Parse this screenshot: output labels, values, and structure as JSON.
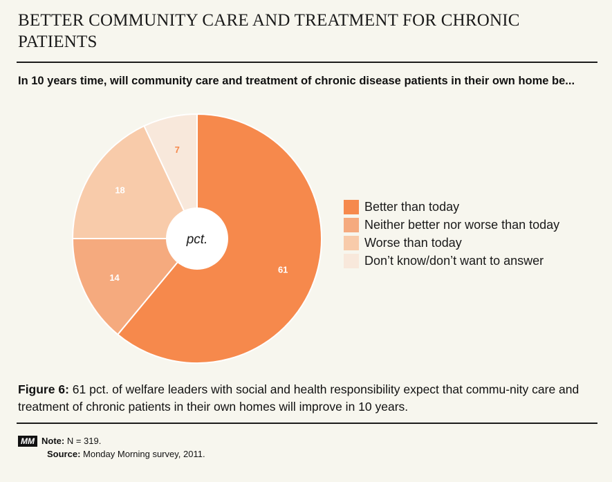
{
  "title": "BETTER COMMUNITY CARE AND TREATMENT FOR CHRONIC PATIENTS",
  "question": "In 10 years time, will community care and treatment of chronic disease patients in their own home be...",
  "center_label": "pct.",
  "chart_data": {
    "type": "pie",
    "style": "donut",
    "unit": "pct.",
    "categories": [
      "Better than today",
      "Neither better nor worse than today",
      "Worse than today",
      "Don’t know/don’t want to answer"
    ],
    "values": [
      61,
      14,
      18,
      7
    ],
    "colors": [
      "#f6894c",
      "#f5aa7e",
      "#f8cbaa",
      "#f8e8db"
    ],
    "label_colors": [
      "#ffffff",
      "#ffffff",
      "#ffffff",
      "#f6894c"
    ],
    "legend_placement": "right"
  },
  "caption": {
    "figure_label": "Figure 6:",
    "text": " 61 pct. of welfare leaders with social and health responsibility expect that commu-nity care and treatment of chronic patients in their own homes will improve in 10 years."
  },
  "notes": {
    "badge": "MM",
    "note_label": "Note:",
    "note_text": " N = 319.",
    "source_label": "Source:",
    "source_text": " Monday Morning survey, 2011."
  }
}
